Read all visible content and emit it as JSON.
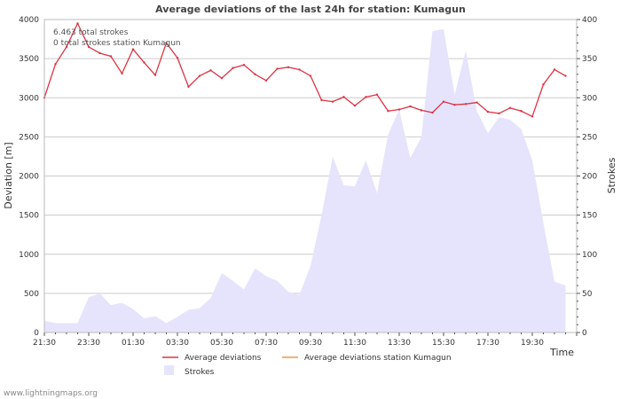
{
  "chart_data": {
    "type": "line",
    "title": "Average deviations of the last 24h for station: Kumagun",
    "xlabel": "Time",
    "ylabel_left": "Deviation  [m]",
    "ylabel_right": "Strokes",
    "ylim_left": [
      0,
      4000
    ],
    "ylim_right": [
      0,
      400
    ],
    "y_ticks_left": [
      "0",
      "500",
      "1000",
      "1500",
      "2000",
      "2500",
      "3000",
      "3500",
      "4000"
    ],
    "y_ticks_right": [
      "0",
      "50",
      "100",
      "150",
      "200",
      "250",
      "300",
      "350",
      "400"
    ],
    "x_ticks": [
      "21:30",
      "23:30",
      "01:30",
      "03:30",
      "05:30",
      "07:30",
      "09:30",
      "11:30",
      "13:30",
      "15:30",
      "17:30",
      "19:30"
    ],
    "x_slots": 48,
    "grid": true,
    "legend_position": "bottom",
    "info_lines": [
      "6.463 total strokes",
      "0 total strokes station Kumagun"
    ],
    "series": [
      {
        "name": "Average deviations",
        "axis": "left",
        "color": "#dd3344",
        "values": [
          3000,
          3430,
          3650,
          3950,
          3650,
          3570,
          3530,
          3310,
          3620,
          3450,
          3290,
          3700,
          3510,
          3140,
          3280,
          3350,
          3250,
          3380,
          3420,
          3300,
          3220,
          3370,
          3390,
          3360,
          3280,
          2970,
          2950,
          3010,
          2900,
          3010,
          3040,
          2830,
          2850,
          2890,
          2840,
          2810,
          2950,
          2910,
          2920,
          2940,
          2820,
          2800,
          2870,
          2830,
          2760,
          3170,
          3360,
          3280
        ]
      },
      {
        "name": "Average deviations station Kumagun",
        "axis": "left",
        "color": "#ee9944",
        "values": []
      },
      {
        "name": "Strokes",
        "axis": "right",
        "type": "area",
        "color": "#e6e4fc",
        "values": [
          15,
          12,
          12,
          12,
          45,
          50,
          35,
          38,
          30,
          18,
          21,
          12,
          20,
          29,
          31,
          44,
          76,
          66,
          55,
          82,
          72,
          66,
          52,
          48,
          85,
          150,
          225,
          188,
          187,
          220,
          178,
          253,
          285,
          223,
          250,
          385,
          388,
          304,
          360,
          283,
          255,
          275,
          272,
          260,
          220,
          140,
          65,
          60
        ]
      }
    ]
  },
  "footer": "www.lightningmaps.org"
}
